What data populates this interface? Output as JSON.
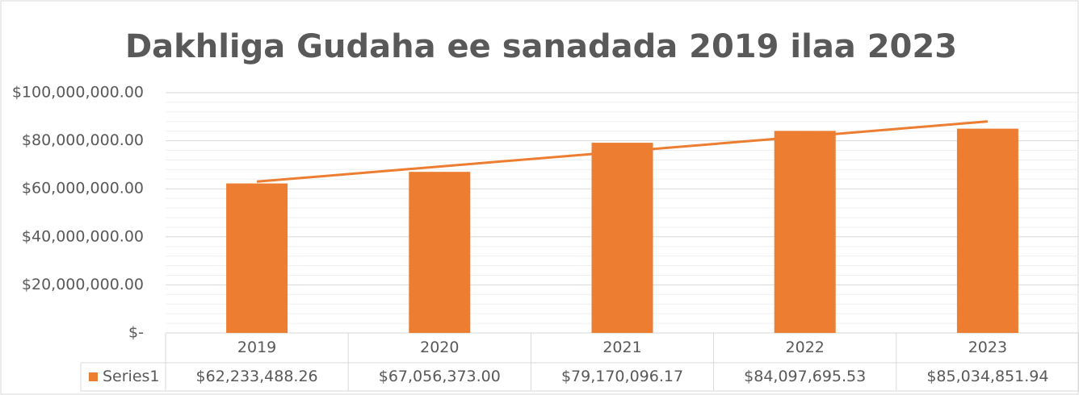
{
  "chart_data": {
    "type": "bar",
    "title": "Dakhliga Gudaha ee sanadada 2019 ilaa 2023",
    "categories": [
      "2019",
      "2020",
      "2021",
      "2022",
      "2023"
    ],
    "series": [
      {
        "name": "Series1",
        "color": "#ed7d31",
        "values": [
          62233488.26,
          67056373.0,
          79170096.17,
          84097695.53,
          85034851.94
        ],
        "value_labels": [
          "$62,233,488.26",
          "$67,056,373.00",
          "$79,170,096.17",
          "$84,097,695.53",
          "$85,034,851.94"
        ]
      }
    ],
    "trendline": "linear",
    "ylim": [
      0,
      100000000
    ],
    "yticks": [
      {
        "value": 0,
        "label": "$-"
      },
      {
        "value": 20000000,
        "label": "$20,000,000.00"
      },
      {
        "value": 40000000,
        "label": "$40,000,000.00"
      },
      {
        "value": 60000000,
        "label": "$60,000,000.00"
      },
      {
        "value": 80000000,
        "label": "$80,000,000.00"
      },
      {
        "value": 100000000,
        "label": "$100,000,000.00"
      }
    ],
    "grid": true,
    "minor_grid": true,
    "data_table": true
  }
}
